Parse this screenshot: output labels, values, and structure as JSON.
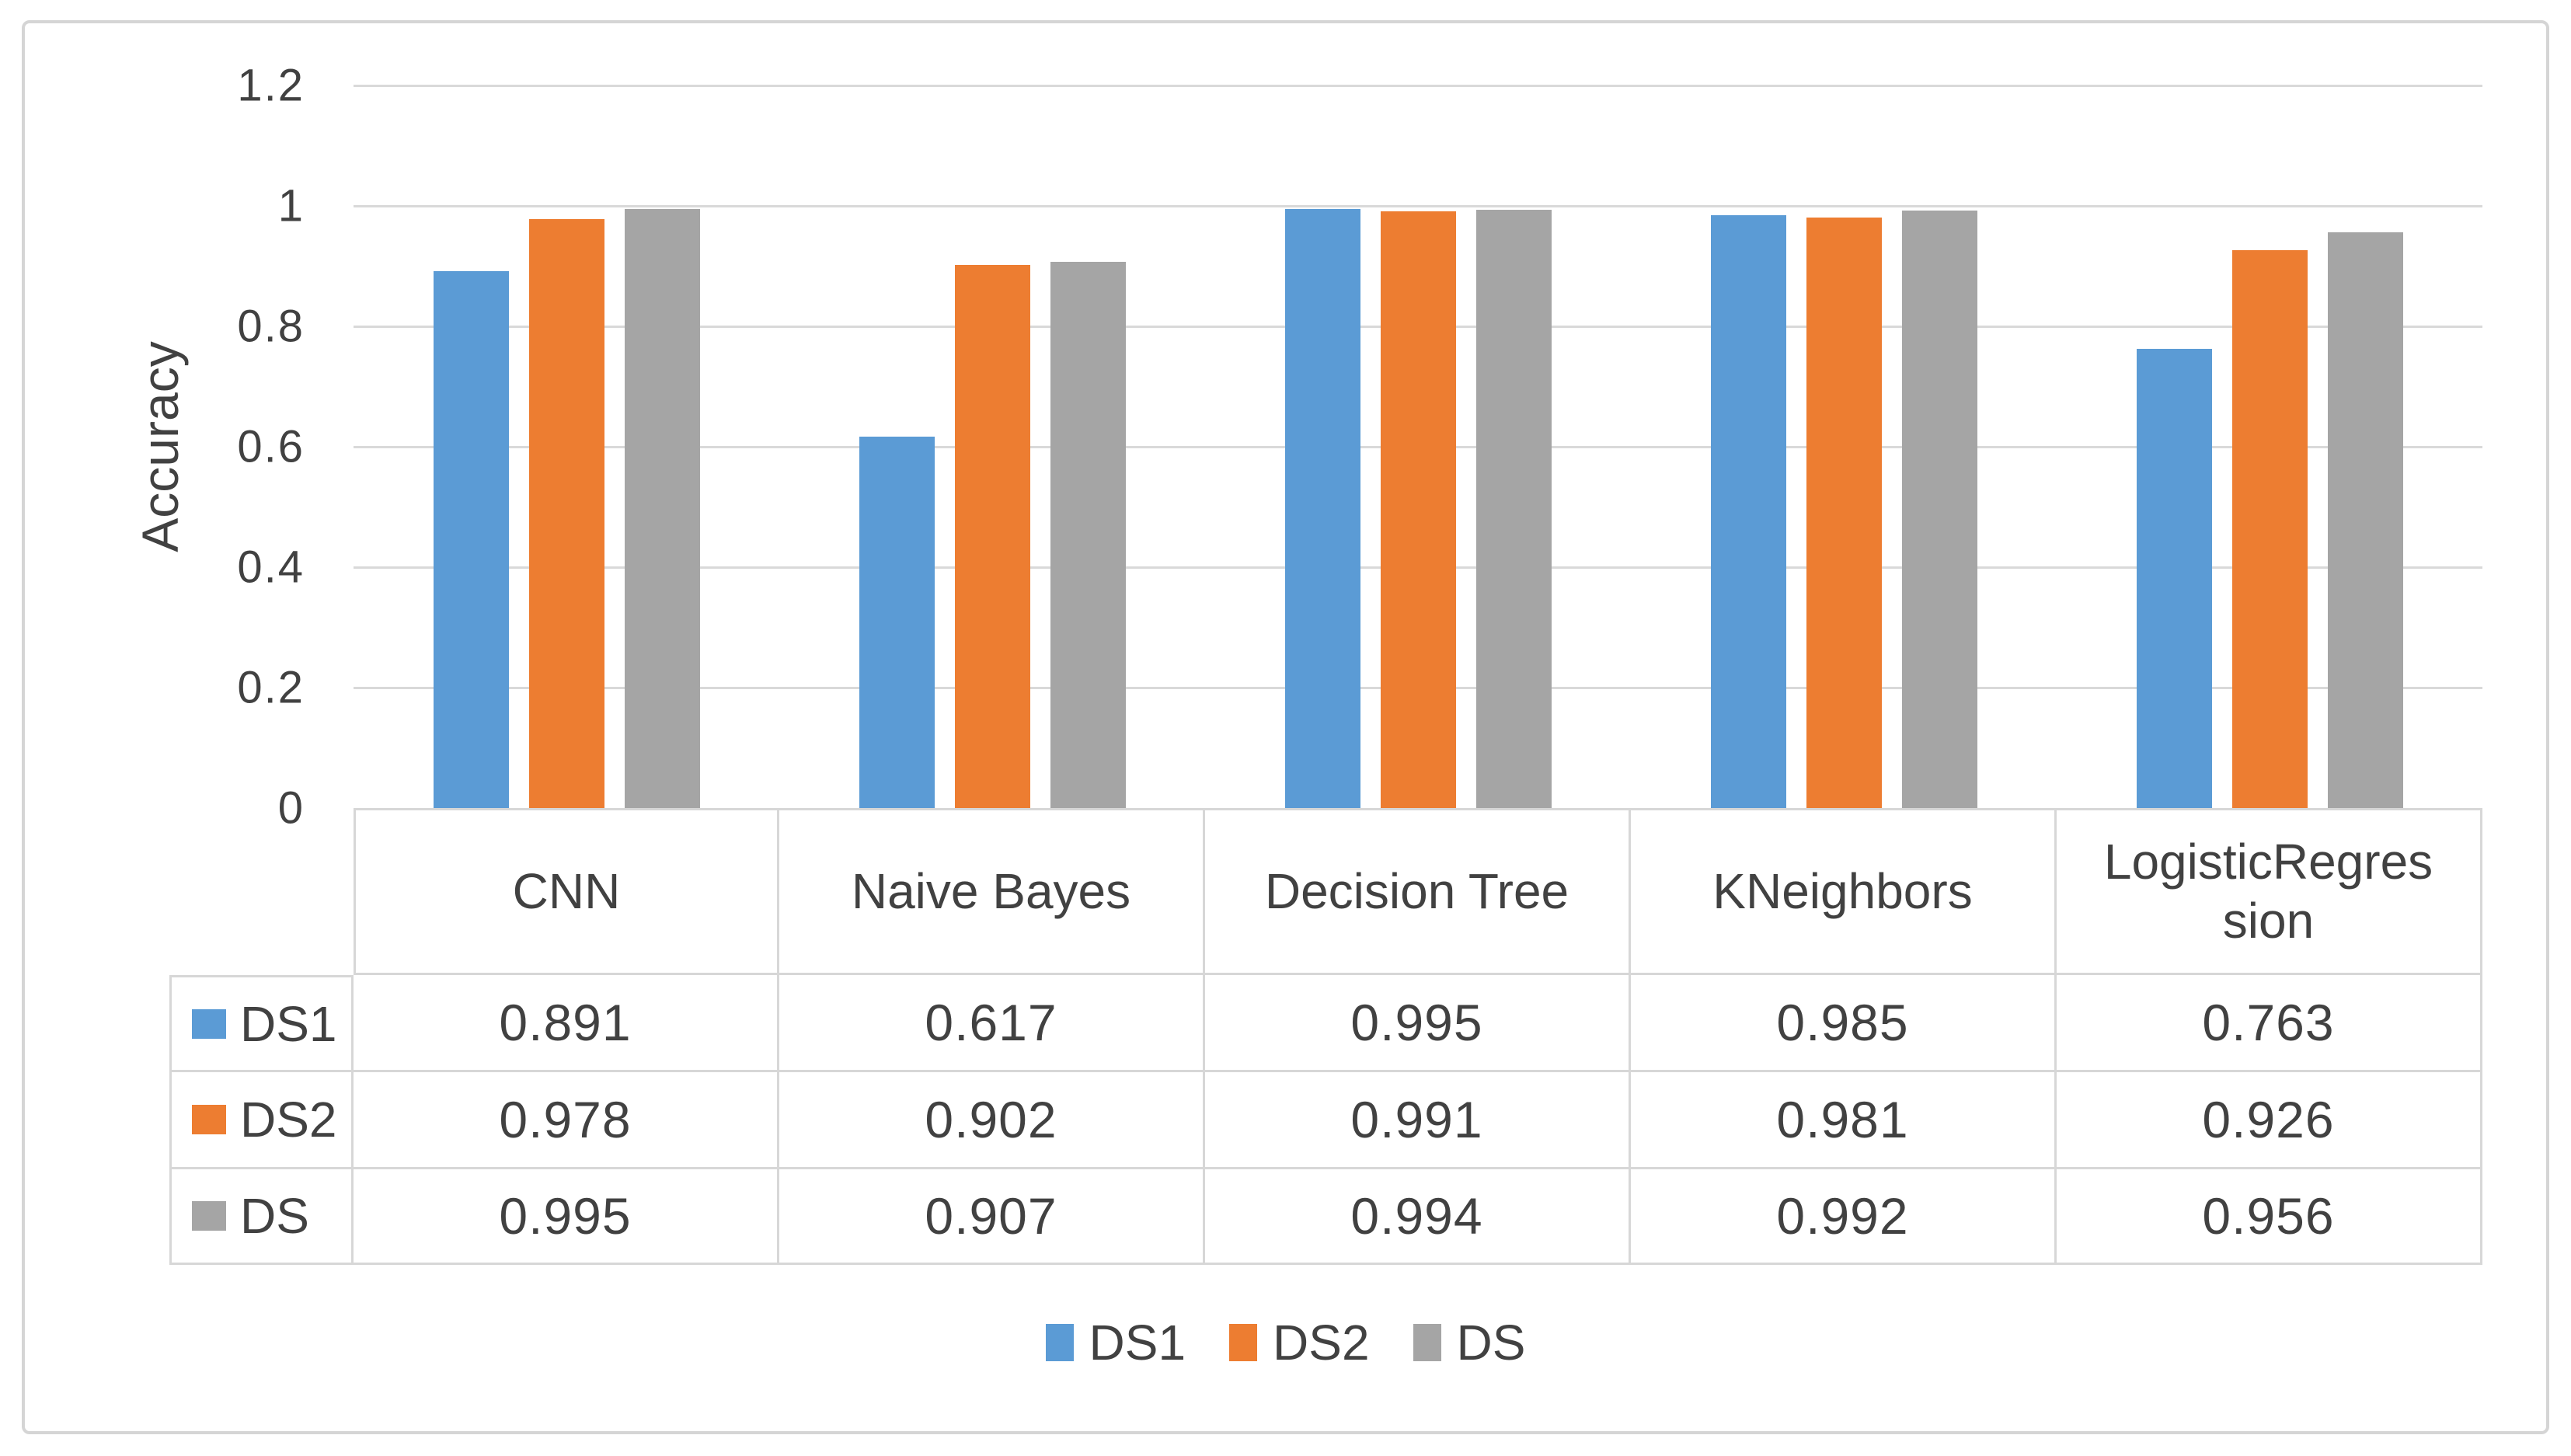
{
  "chart_data": {
    "type": "bar",
    "title": "",
    "xlabel": "",
    "ylabel": "Accuracy",
    "categories": [
      "CNN",
      "Naive Bayes",
      "Decision Tree",
      "KNeighbors",
      "LogisticRegression"
    ],
    "category_display_lines": [
      [
        "CNN"
      ],
      [
        "Naive Bayes"
      ],
      [
        "Decision Tree"
      ],
      [
        "KNeighbors"
      ],
      [
        "LogisticRegres",
        "sion"
      ]
    ],
    "series": [
      {
        "name": "DS1",
        "color": "#5B9BD5",
        "values": [
          0.891,
          0.617,
          0.995,
          0.985,
          0.763
        ]
      },
      {
        "name": "DS2",
        "color": "#ED7D31",
        "values": [
          0.978,
          0.902,
          0.991,
          0.981,
          0.926
        ]
      },
      {
        "name": "DS",
        "color": "#A5A5A5",
        "values": [
          0.995,
          0.907,
          0.994,
          0.992,
          0.956
        ]
      }
    ],
    "y_ticks": [
      0,
      0.2,
      0.4,
      0.6,
      0.8,
      1,
      1.2
    ],
    "ylim": [
      0,
      1.2
    ],
    "grid": true,
    "gridline_color": "#d9d9d9",
    "legend_position": "bottom",
    "legend_labels": [
      "DS1",
      "DS2",
      "DS"
    ],
    "data_table_shown": true
  },
  "styles": {
    "text_color": "#414141",
    "table_border_color": "#d7d7d7",
    "frame_border_color": "#d5d5d5",
    "background_color": "#ffffff"
  }
}
